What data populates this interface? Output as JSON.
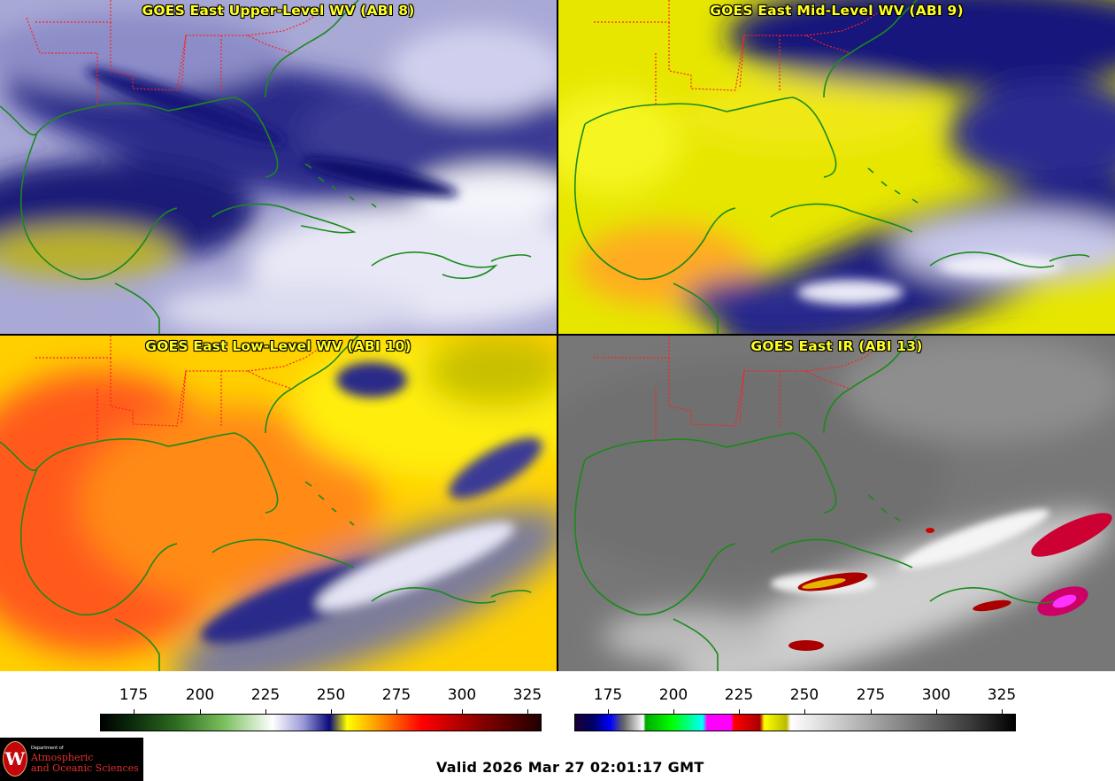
{
  "panels": {
    "top_left": {
      "title": "GOES East Upper-Level WV (ABI 8)"
    },
    "top_right": {
      "title": "GOES East Mid-Level WV (ABI 9)"
    },
    "bottom_left": {
      "title": "GOES East Low-Level WV (ABI 10)"
    },
    "bottom_right": {
      "title": "GOES East IR (ABI 13)"
    }
  },
  "colorbars": {
    "wv": {
      "ticks": [
        "175",
        "200",
        "225",
        "250",
        "275",
        "300",
        "325"
      ]
    },
    "ir": {
      "ticks": [
        "175",
        "200",
        "225",
        "250",
        "275",
        "300",
        "325"
      ]
    }
  },
  "logo": {
    "seal": "W",
    "dept": "Department of",
    "line1": "Atmospheric",
    "line2": "and Oceanic Sciences"
  },
  "footer": {
    "valid": "Valid 2026 Mar 27 02:01:17 GMT"
  },
  "colors": {
    "title": "#ffff1e",
    "coast": "#1a8a1a",
    "state_border": "#ff2020"
  }
}
